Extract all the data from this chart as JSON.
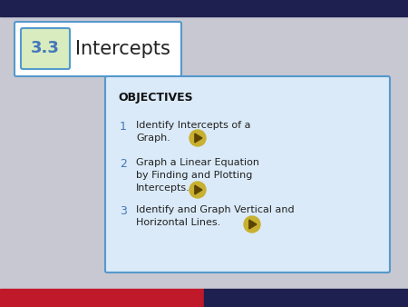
{
  "background_color": "#c8c8d2",
  "top_bar_color": "#1e2050",
  "bottom_bar_left_color": "#c0192a",
  "bottom_bar_right_color": "#1e2050",
  "title_box_bg": "#ffffff",
  "title_box_border": "#5599cc",
  "title_num_box_bg": "#d8ecc0",
  "title_num_box_border": "#5599cc",
  "title_number": "3.3",
  "title_text": "Intercepts",
  "objectives_box_bg": "#daeaf8",
  "objectives_box_border": "#5599cc",
  "objectives_title": "OBJECTIVES",
  "obj1_num": "1",
  "obj1_line1": "Identify Intercepts of a",
  "obj1_line2": "Graph.",
  "obj2_num": "2",
  "obj2_line1": "Graph a Linear Equation",
  "obj2_line2": "by Finding and Plotting",
  "obj2_line3": "Intercepts.",
  "obj3_num": "3",
  "obj3_line1": "Identify and Graph Vertical and",
  "obj3_line2": "Horizontal Lines.",
  "number_color": "#4477bb",
  "text_color": "#222222",
  "objectives_title_color": "#111111",
  "play_icon_bg": "#c8b030",
  "play_icon_arrow": "#5a4500"
}
